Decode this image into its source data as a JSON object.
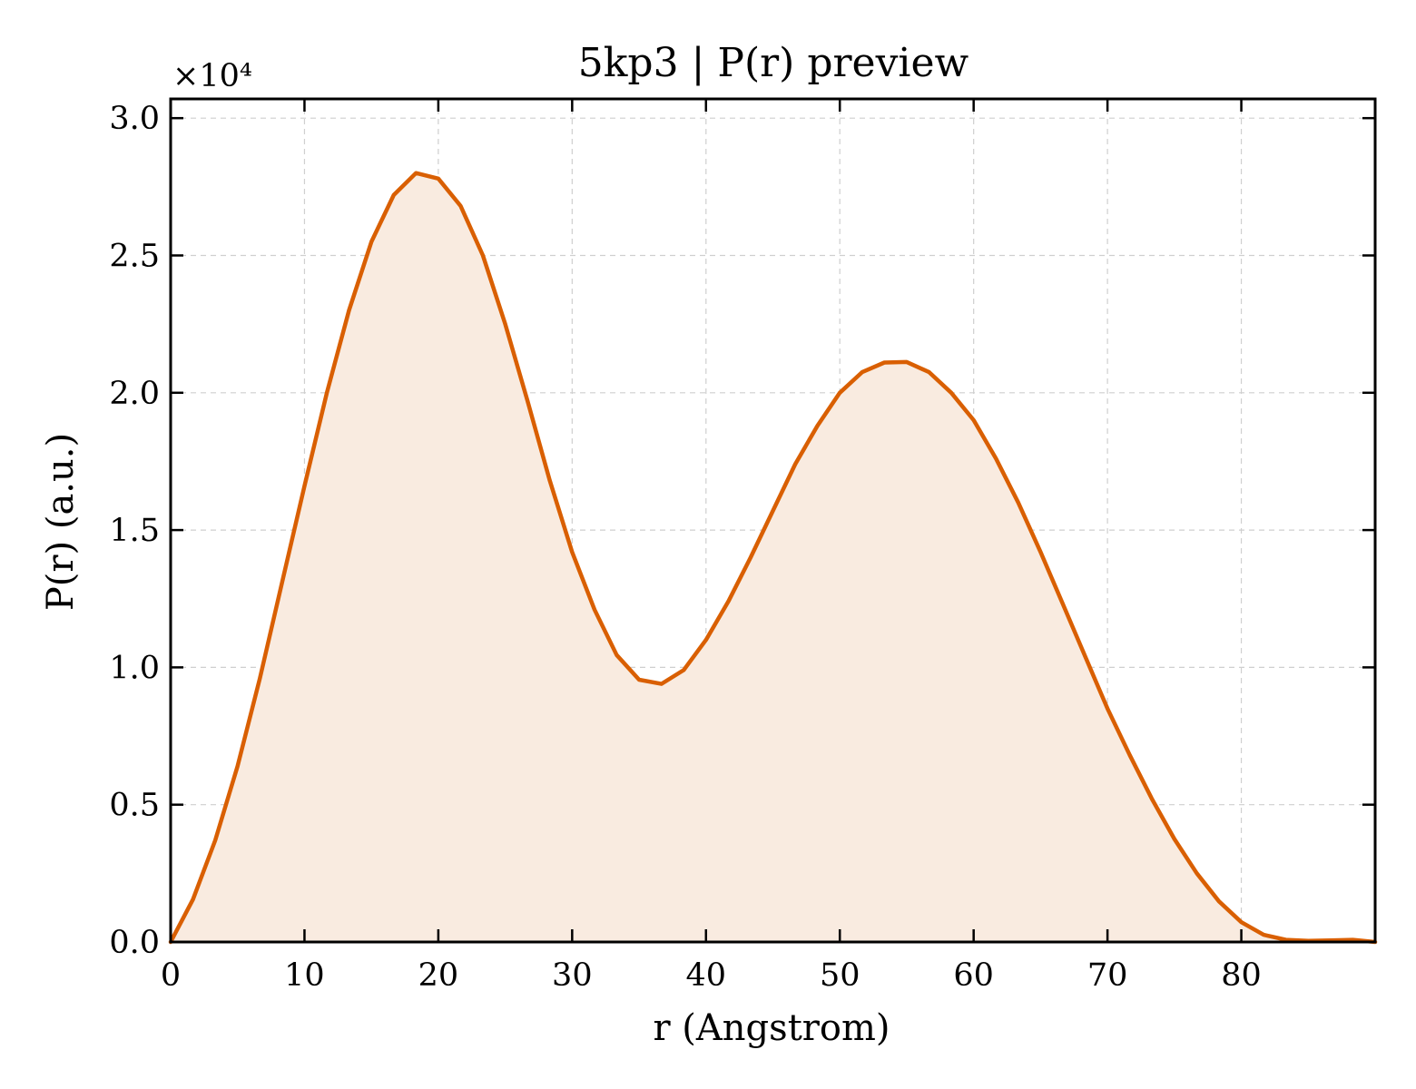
{
  "chart_data": {
    "type": "area",
    "title": "5kp3 | P(r) preview",
    "xlabel": "r (Angstrom)",
    "ylabel": "P(r) (a.u.)",
    "y_offset_label": "×10⁴",
    "y_multiplier": 10000,
    "xlim": [
      0,
      90
    ],
    "ylim": [
      0,
      3.07
    ],
    "x_ticks": [
      0,
      10,
      20,
      30,
      40,
      50,
      60,
      70,
      80
    ],
    "x_tick_labels": [
      "0",
      "10",
      "20",
      "30",
      "40",
      "50",
      "60",
      "70",
      "80"
    ],
    "y_ticks": [
      0.0,
      0.5,
      1.0,
      1.5,
      2.0,
      2.5,
      3.0
    ],
    "y_tick_labels": [
      "0.0",
      "0.5",
      "1.0",
      "1.5",
      "2.0",
      "2.5",
      "3.0"
    ],
    "grid": true,
    "line_color": "#d95f02",
    "fill_color": "#f9ebe0",
    "series": [
      {
        "x": [
          0,
          1.67,
          3.33,
          5.0,
          6.67,
          8.33,
          10.0,
          11.67,
          13.33,
          15.0,
          16.67,
          18.33,
          20.0,
          21.67,
          23.33,
          25.0,
          26.67,
          28.33,
          30.0,
          31.67,
          33.33,
          35.0,
          36.67,
          38.33,
          40.0,
          41.67,
          43.33,
          45.0,
          46.67,
          48.33,
          50.0,
          51.67,
          53.33,
          55.0,
          56.67,
          58.33,
          60.0,
          61.67,
          63.33,
          65.0,
          66.67,
          68.33,
          70.0,
          71.67,
          73.33,
          75.0,
          76.67,
          78.33,
          80.0,
          81.67,
          83.33,
          85.0,
          86.67,
          88.33,
          90.0
        ],
        "y": [
          0.0,
          0.155,
          0.37,
          0.64,
          0.96,
          1.31,
          1.66,
          2.0,
          2.3,
          2.55,
          2.72,
          2.8,
          2.78,
          2.68,
          2.5,
          2.25,
          1.97,
          1.68,
          1.42,
          1.21,
          1.045,
          0.955,
          0.94,
          0.99,
          1.1,
          1.24,
          1.4,
          1.57,
          1.74,
          1.88,
          2.0,
          2.075,
          2.11,
          2.112,
          2.075,
          2.0,
          1.9,
          1.76,
          1.6,
          1.42,
          1.23,
          1.04,
          0.85,
          0.68,
          0.52,
          0.375,
          0.25,
          0.148,
          0.072,
          0.026,
          0.008,
          0.004,
          0.006,
          0.008,
          0.0
        ]
      }
    ]
  }
}
